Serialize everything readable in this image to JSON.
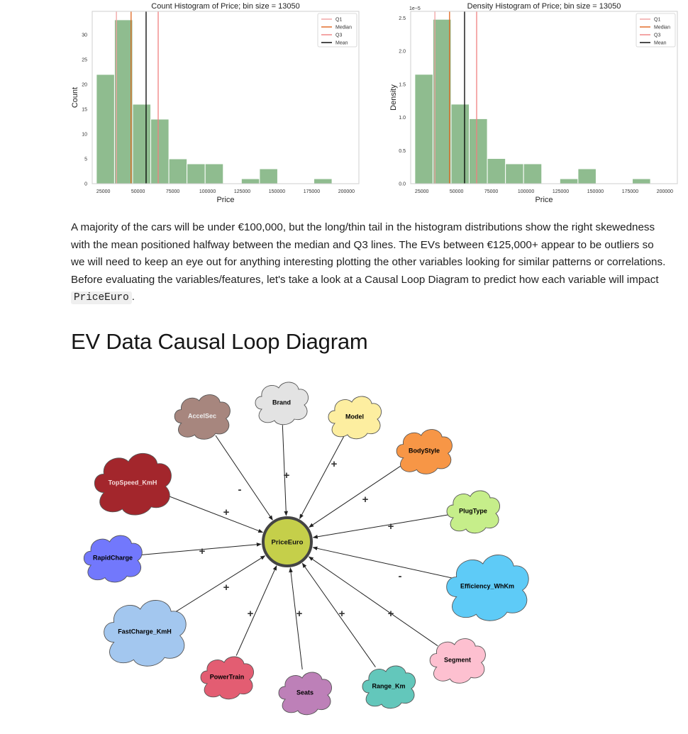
{
  "chart_data": [
    {
      "type": "bar",
      "title": "Count Histogram of Price; bin size = 13050",
      "xlabel": "Price",
      "ylabel": "Count",
      "bin_edges": [
        20000,
        33050,
        46100,
        59150,
        72200,
        85250,
        98300,
        111350,
        124400,
        137450,
        150500,
        163550,
        176600,
        189650
      ],
      "values": [
        22,
        33,
        16,
        13,
        5,
        4,
        4,
        0,
        1,
        3,
        0,
        0,
        1
      ],
      "xlim": [
        17000,
        209000
      ],
      "ylim": [
        0,
        34.7
      ],
      "xticks": [
        25000,
        50000,
        75000,
        100000,
        125000,
        150000,
        175000,
        200000
      ],
      "yticks": [
        0,
        5,
        10,
        15,
        20,
        25,
        30
      ],
      "ytick_labels": [
        "0",
        "5",
        "10",
        "15",
        "20",
        "25",
        "30"
      ],
      "lines": [
        {
          "name": "Q1",
          "x": 34430,
          "color": "#f0a1a1"
        },
        {
          "name": "Median",
          "x": 45000,
          "color": "#e0641c"
        },
        {
          "name": "Q3",
          "x": 64500,
          "color": "#f08080"
        },
        {
          "name": "Mean",
          "x": 55800,
          "color": "#000000"
        }
      ],
      "bar_color": "#8fbc8f",
      "legend_position": "top-right",
      "grid": false
    },
    {
      "type": "bar",
      "title": "Density Histogram of Price; bin size = 13050",
      "xlabel": "Price",
      "ylabel": "Density",
      "offset_label": "1e−5",
      "bin_edges": [
        20000,
        33050,
        46100,
        59150,
        72200,
        85250,
        98300,
        111350,
        124400,
        137450,
        150500,
        163550,
        176600,
        189650
      ],
      "values": [
        1.65,
        2.48,
        1.2,
        0.98,
        0.38,
        0.3,
        0.3,
        0,
        0.075,
        0.225,
        0,
        0,
        0.075
      ],
      "xlim": [
        17000,
        209000
      ],
      "ylim": [
        0,
        2.6
      ],
      "xticks": [
        25000,
        50000,
        75000,
        100000,
        125000,
        150000,
        175000,
        200000
      ],
      "yticks": [
        0,
        0.5,
        1.0,
        1.5,
        2.0,
        2.5
      ],
      "ytick_labels": [
        "0.0",
        "0.5",
        "1.0",
        "1.5",
        "2.0",
        "2.5"
      ],
      "lines": [
        {
          "name": "Q1",
          "x": 34430,
          "color": "#f0a1a1"
        },
        {
          "name": "Median",
          "x": 45000,
          "color": "#e0641c"
        },
        {
          "name": "Q3",
          "x": 64500,
          "color": "#f08080"
        },
        {
          "name": "Mean",
          "x": 55800,
          "color": "#000000"
        }
      ],
      "bar_color": "#8fbc8f",
      "legend_position": "top-right",
      "grid": false
    }
  ],
  "text": {
    "paragraph_before": "A majority of the cars will be under €100,000, but the long/thin tail in the histogram distributions show the right skewedness with the mean positioned halfway between the median and Q3 lines. The EVs between €125,000+ appear to be outliers so we will need to keep an eye out for anything interesting plotting the other variables looking for similar patterns or correlations. Before evaluating the variables/features, let's take a look at a Causal Loop Diagram to predict how each variable will impact ",
    "paragraph_code": "PriceEuro",
    "paragraph_after": ".",
    "heading": "EV Data Causal Loop Diagram"
  },
  "diagram": {
    "center": {
      "label": "PriceEuro",
      "color": "#c5cf4a"
    },
    "nodes": [
      {
        "label": "Brand",
        "color": "#e3e3e3",
        "sign": "+",
        "text_color": "#000000"
      },
      {
        "label": "Model",
        "color": "#fdeea0",
        "sign": "+",
        "text_color": "#000000"
      },
      {
        "label": "BodyStyle",
        "color": "#f79646",
        "sign": "+",
        "text_color": "#000000"
      },
      {
        "label": "PlugType",
        "color": "#c6ee8a",
        "sign": "+",
        "text_color": "#000000"
      },
      {
        "label": "Efficiency_WhKm",
        "color": "#5ecbf7",
        "sign": "-",
        "text_color": "#000000"
      },
      {
        "label": "Segment",
        "color": "#fdc0d0",
        "sign": "+",
        "text_color": "#000000"
      },
      {
        "label": "Range_Km",
        "color": "#63c7bb",
        "sign": "+",
        "text_color": "#000000"
      },
      {
        "label": "Seats",
        "color": "#bd80b8",
        "sign": "+",
        "text_color": "#000000"
      },
      {
        "label": "PowerTrain",
        "color": "#e35d72",
        "sign": "+",
        "text_color": "#000000"
      },
      {
        "label": "FastCharge_KmH",
        "color": "#a3c7ef",
        "sign": "+",
        "text_color": "#000000"
      },
      {
        "label": "RapidCharge",
        "color": "#7278fc",
        "sign": "+",
        "text_color": "#000000"
      },
      {
        "label": "TopSpeed_KmH",
        "color": "#a3262c",
        "sign": "+",
        "text_color": "#f5dada"
      },
      {
        "label": "AccelSec",
        "color": "#a7867e",
        "sign": "-",
        "text_color": "#eeeeee"
      }
    ]
  }
}
